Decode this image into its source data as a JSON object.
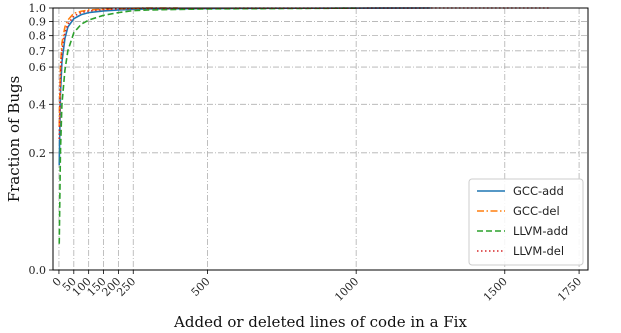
{
  "chart_data": {
    "type": "line",
    "xlabel": "Added or deleted lines of code in a Fix",
    "ylabel": "Fraction of Bugs",
    "xlim": [
      -20,
      1780
    ],
    "ylim": [
      0,
      1
    ],
    "y_scale": "sqrt",
    "x_ticks": [
      0,
      50,
      100,
      150,
      200,
      250,
      500,
      1000,
      1500,
      1750
    ],
    "x_tick_labels": [
      "0",
      "50",
      "100",
      "150",
      "200",
      "250",
      "500",
      "1000",
      "1500",
      "1750"
    ],
    "y_ticks": [
      0.0,
      0.2,
      0.4,
      0.6,
      0.7,
      0.8,
      0.9,
      1.0
    ],
    "y_tick_labels": [
      "0.0",
      "0.2",
      "0.4",
      "0.6",
      "0.7",
      "0.8",
      "0.9",
      "1.0"
    ],
    "grid": true,
    "legend_position": "bottom-right",
    "series": [
      {
        "name": "GCC-add",
        "color": "#1f77b4",
        "dash": "solid",
        "x": [
          1,
          5,
          10,
          20,
          30,
          50,
          75,
          100,
          150,
          200,
          250,
          300,
          500,
          800,
          1000,
          1250
        ],
        "y": [
          0.16,
          0.45,
          0.63,
          0.78,
          0.86,
          0.92,
          0.95,
          0.965,
          0.978,
          0.985,
          0.99,
          0.993,
          0.996,
          0.998,
          0.999,
          1.0
        ]
      },
      {
        "name": "GCC-del",
        "color": "#ff7f0e",
        "dash": "dashdot",
        "x": [
          1,
          5,
          10,
          20,
          30,
          50,
          75,
          100,
          150,
          200,
          250,
          300,
          400
        ],
        "y": [
          0.3,
          0.6,
          0.75,
          0.86,
          0.91,
          0.96,
          0.975,
          0.985,
          0.99,
          0.995,
          0.998,
          1.0,
          1.0
        ]
      },
      {
        "name": "LLVM-add",
        "color": "#2ca02c",
        "dash": "dashed",
        "x": [
          1,
          5,
          10,
          20,
          30,
          50,
          75,
          100,
          150,
          200,
          250,
          300,
          500,
          1000
        ],
        "y": [
          0.01,
          0.2,
          0.4,
          0.58,
          0.7,
          0.82,
          0.88,
          0.91,
          0.945,
          0.965,
          0.98,
          0.985,
          0.993,
          0.999
        ]
      },
      {
        "name": "LLVM-del",
        "color": "#d62728",
        "dash": "dotted",
        "x": [
          1,
          5,
          10,
          20,
          30,
          50,
          75,
          100,
          150,
          200,
          250,
          500,
          1000,
          1250,
          1650
        ],
        "y": [
          0.25,
          0.55,
          0.7,
          0.82,
          0.88,
          0.94,
          0.965,
          0.978,
          0.988,
          0.993,
          0.996,
          0.998,
          0.999,
          1.0,
          1.0
        ]
      }
    ]
  }
}
